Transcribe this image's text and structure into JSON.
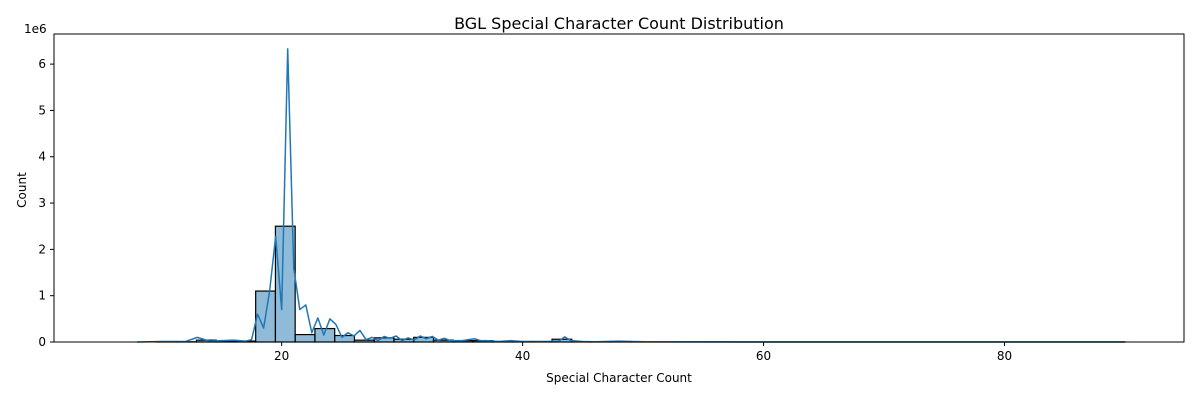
{
  "chart_data": {
    "type": "bar",
    "title": "BGL Special Character Count Distribution",
    "xlabel": "Special Character Count",
    "ylabel": "Count",
    "y_scale_label": "1e6",
    "xlim": [
      1.1,
      94.9
    ],
    "ylim": [
      0,
      6650000
    ],
    "xticks": [
      20,
      40,
      60,
      80
    ],
    "yticks": [
      0,
      1000000,
      2000000,
      3000000,
      4000000,
      5000000,
      6000000
    ],
    "ytick_labels": [
      "0",
      "1",
      "2",
      "3",
      "4",
      "5",
      "6"
    ],
    "bar_color": "#1f77b4",
    "bar_fill_opacity": 0.5,
    "bar_edge_color": "#000000",
    "grid": false,
    "bins": [
      {
        "x0": 8.0,
        "x1": 9.64,
        "value": 0
      },
      {
        "x0": 9.64,
        "x1": 11.28,
        "value": 5000
      },
      {
        "x0": 11.28,
        "x1": 12.92,
        "value": 5000
      },
      {
        "x0": 12.92,
        "x1": 14.56,
        "value": 40000
      },
      {
        "x0": 14.56,
        "x1": 16.2,
        "value": 10000
      },
      {
        "x0": 16.2,
        "x1": 17.84,
        "value": 20000
      },
      {
        "x0": 17.84,
        "x1": 19.48,
        "value": 1100000
      },
      {
        "x0": 19.48,
        "x1": 21.12,
        "value": 2500000
      },
      {
        "x0": 21.12,
        "x1": 22.76,
        "value": 160000
      },
      {
        "x0": 22.76,
        "x1": 24.4,
        "value": 290000
      },
      {
        "x0": 24.4,
        "x1": 26.04,
        "value": 140000
      },
      {
        "x0": 26.04,
        "x1": 27.68,
        "value": 40000
      },
      {
        "x0": 27.68,
        "x1": 29.32,
        "value": 90000
      },
      {
        "x0": 29.32,
        "x1": 30.96,
        "value": 60000
      },
      {
        "x0": 30.96,
        "x1": 32.6,
        "value": 100000
      },
      {
        "x0": 32.6,
        "x1": 34.24,
        "value": 40000
      },
      {
        "x0": 34.24,
        "x1": 35.88,
        "value": 30000
      },
      {
        "x0": 35.88,
        "x1": 37.52,
        "value": 30000
      },
      {
        "x0": 37.52,
        "x1": 39.16,
        "value": 10000
      },
      {
        "x0": 39.16,
        "x1": 40.8,
        "value": 10000
      },
      {
        "x0": 40.8,
        "x1": 42.44,
        "value": 10000
      },
      {
        "x0": 42.44,
        "x1": 44.08,
        "value": 60000
      },
      {
        "x0": 44.08,
        "x1": 45.72,
        "value": 5000
      },
      {
        "x0": 45.72,
        "x1": 47.36,
        "value": 5000
      },
      {
        "x0": 47.36,
        "x1": 49.0,
        "value": 10000
      },
      {
        "x0": 49.0,
        "x1": 90.0,
        "value": 2000
      }
    ],
    "kde_line": {
      "name": "",
      "x": [
        8,
        10,
        12,
        13,
        14,
        16,
        17,
        17.5,
        18,
        18.5,
        19,
        19.5,
        20,
        20.5,
        21,
        21.5,
        22,
        22.5,
        23,
        23.5,
        24,
        24.5,
        25,
        25.5,
        26,
        26.5,
        27,
        27.5,
        28,
        28.5,
        29,
        29.5,
        30,
        30.5,
        31,
        31.5,
        32,
        32.5,
        33,
        33.5,
        34,
        35,
        36,
        36.5,
        37,
        38,
        39,
        40,
        41,
        42,
        43,
        43.5,
        44,
        45,
        46,
        48,
        50,
        55,
        60,
        70,
        80,
        90
      ],
      "y": [
        0,
        10000,
        10000,
        100000,
        20000,
        40000,
        20000,
        50000,
        600000,
        300000,
        1100000,
        2280000,
        700000,
        6330000,
        1600000,
        700000,
        800000,
        200000,
        520000,
        150000,
        500000,
        380000,
        100000,
        200000,
        130000,
        250000,
        50000,
        100000,
        30000,
        120000,
        80000,
        130000,
        30000,
        90000,
        40000,
        130000,
        70000,
        120000,
        40000,
        80000,
        30000,
        30000,
        70000,
        30000,
        30000,
        10000,
        30000,
        10000,
        10000,
        10000,
        20000,
        110000,
        30000,
        10000,
        5000,
        20000,
        5000,
        2000,
        1000,
        1000,
        500,
        1000
      ]
    }
  }
}
